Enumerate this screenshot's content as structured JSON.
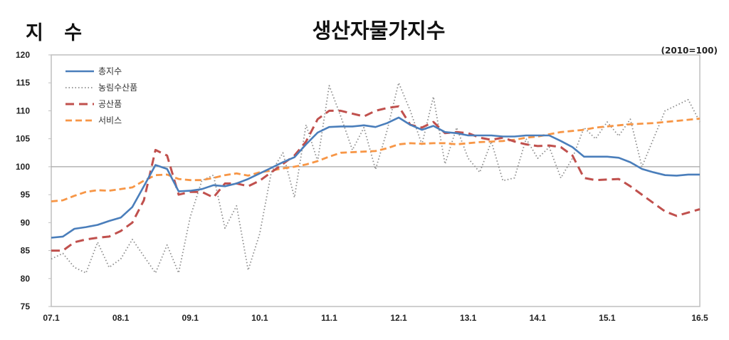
{
  "header": {
    "y_title": "지 수",
    "title": "생산자물가지수",
    "unit": "(2010=100)"
  },
  "legend": [
    {
      "label": "총지수",
      "color": "#4a7ebb",
      "style": "solid"
    },
    {
      "label": "농림수산품",
      "color": "#8c8c8c",
      "style": "dotted"
    },
    {
      "label": "공산품",
      "color": "#c0504d",
      "style": "dashed-long"
    },
    {
      "label": "서비스",
      "color": "#f79646",
      "style": "dashed"
    }
  ],
  "chart_data": {
    "type": "line",
    "title": "생산자물가지수",
    "ylabel": "지 수",
    "xlabel": "",
    "unit_note": "(2010=100)",
    "ylim": [
      75,
      120
    ],
    "yticks": [
      75,
      80,
      85,
      90,
      95,
      100,
      105,
      110,
      115,
      120
    ],
    "xticks": [
      "07.1",
      "08.1",
      "09.1",
      "10.1",
      "11.1",
      "12.1",
      "13.1",
      "14.1",
      "15.1",
      "16.5"
    ],
    "xtick_months": [
      0,
      12,
      24,
      36,
      48,
      60,
      72,
      84,
      96,
      112
    ],
    "reference_line": 100,
    "legend_position": "upper-left",
    "x_months_step": 2,
    "series": [
      {
        "name": "총지수",
        "values": [
          87.3,
          87.5,
          88.9,
          89.2,
          89.6,
          90.3,
          90.9,
          92.8,
          96.5,
          100.3,
          99.6,
          95.6,
          95.7,
          96.0,
          96.7,
          96.5,
          97.0,
          97.8,
          98.8,
          99.8,
          100.8,
          101.7,
          104.0,
          106.1,
          107.1,
          107.2,
          107.2,
          107.4,
          107.1,
          107.8,
          108.8,
          107.5,
          106.6,
          107.3,
          106.2,
          106.0,
          105.6,
          105.6,
          105.6,
          105.4,
          105.4,
          105.6,
          105.6,
          105.6,
          104.6,
          103.5,
          101.8,
          101.8,
          101.8,
          101.6,
          100.8,
          99.6,
          99.0,
          98.5,
          98.4,
          98.6,
          98.6
        ]
      },
      {
        "name": "농림수산품",
        "values": [
          83.5,
          84.5,
          82.0,
          81.0,
          86.5,
          82.0,
          83.5,
          87.0,
          84.0,
          81.0,
          86.0,
          81.0,
          91.0,
          97.5,
          98.5,
          89.0,
          93.0,
          81.5,
          88.0,
          99.0,
          102.5,
          94.5,
          107.5,
          101.0,
          114.5,
          109.0,
          103.0,
          107.0,
          99.5,
          106.5,
          115.0,
          110.0,
          104.0,
          112.5,
          100.5,
          107.0,
          101.5,
          99.0,
          104.5,
          97.5,
          98.0,
          105.0,
          101.5,
          103.5,
          98.0,
          101.5,
          107.0,
          105.0,
          108.0,
          105.5,
          108.5,
          100.0,
          105.0,
          110.0,
          111.0,
          112.0,
          108.0
        ]
      },
      {
        "name": "공산품",
        "values": [
          85.0,
          85.0,
          86.5,
          87.0,
          87.3,
          87.5,
          88.5,
          90.0,
          94.0,
          103.0,
          102.0,
          95.0,
          95.5,
          95.5,
          94.5,
          97.0,
          97.0,
          96.5,
          97.5,
          99.0,
          100.5,
          102.0,
          104.5,
          108.5,
          110.0,
          110.0,
          109.5,
          109.0,
          110.0,
          110.5,
          110.8,
          107.5,
          107.0,
          108.0,
          106.0,
          106.2,
          106.0,
          105.2,
          104.8,
          105.2,
          104.5,
          104.0,
          103.7,
          103.8,
          103.5,
          102.0,
          98.0,
          97.6,
          97.7,
          97.8,
          96.5,
          95.0,
          93.5,
          92.0,
          91.2,
          91.8,
          92.4
        ]
      },
      {
        "name": "서비스",
        "values": [
          93.8,
          94.0,
          94.8,
          95.5,
          95.8,
          95.7,
          96.0,
          96.3,
          97.5,
          98.5,
          98.6,
          97.8,
          97.6,
          97.6,
          98.0,
          98.5,
          98.8,
          98.4,
          99.0,
          99.3,
          99.7,
          100.0,
          100.4,
          101.0,
          101.8,
          102.5,
          102.6,
          102.7,
          102.8,
          103.3,
          104.0,
          104.2,
          104.1,
          104.2,
          104.2,
          104.0,
          104.2,
          104.4,
          104.5,
          104.6,
          104.8,
          105.2,
          105.4,
          105.8,
          106.2,
          106.4,
          106.6,
          107.0,
          107.2,
          107.4,
          107.6,
          107.7,
          107.8,
          108.0,
          108.2,
          108.4,
          108.6
        ]
      }
    ]
  }
}
